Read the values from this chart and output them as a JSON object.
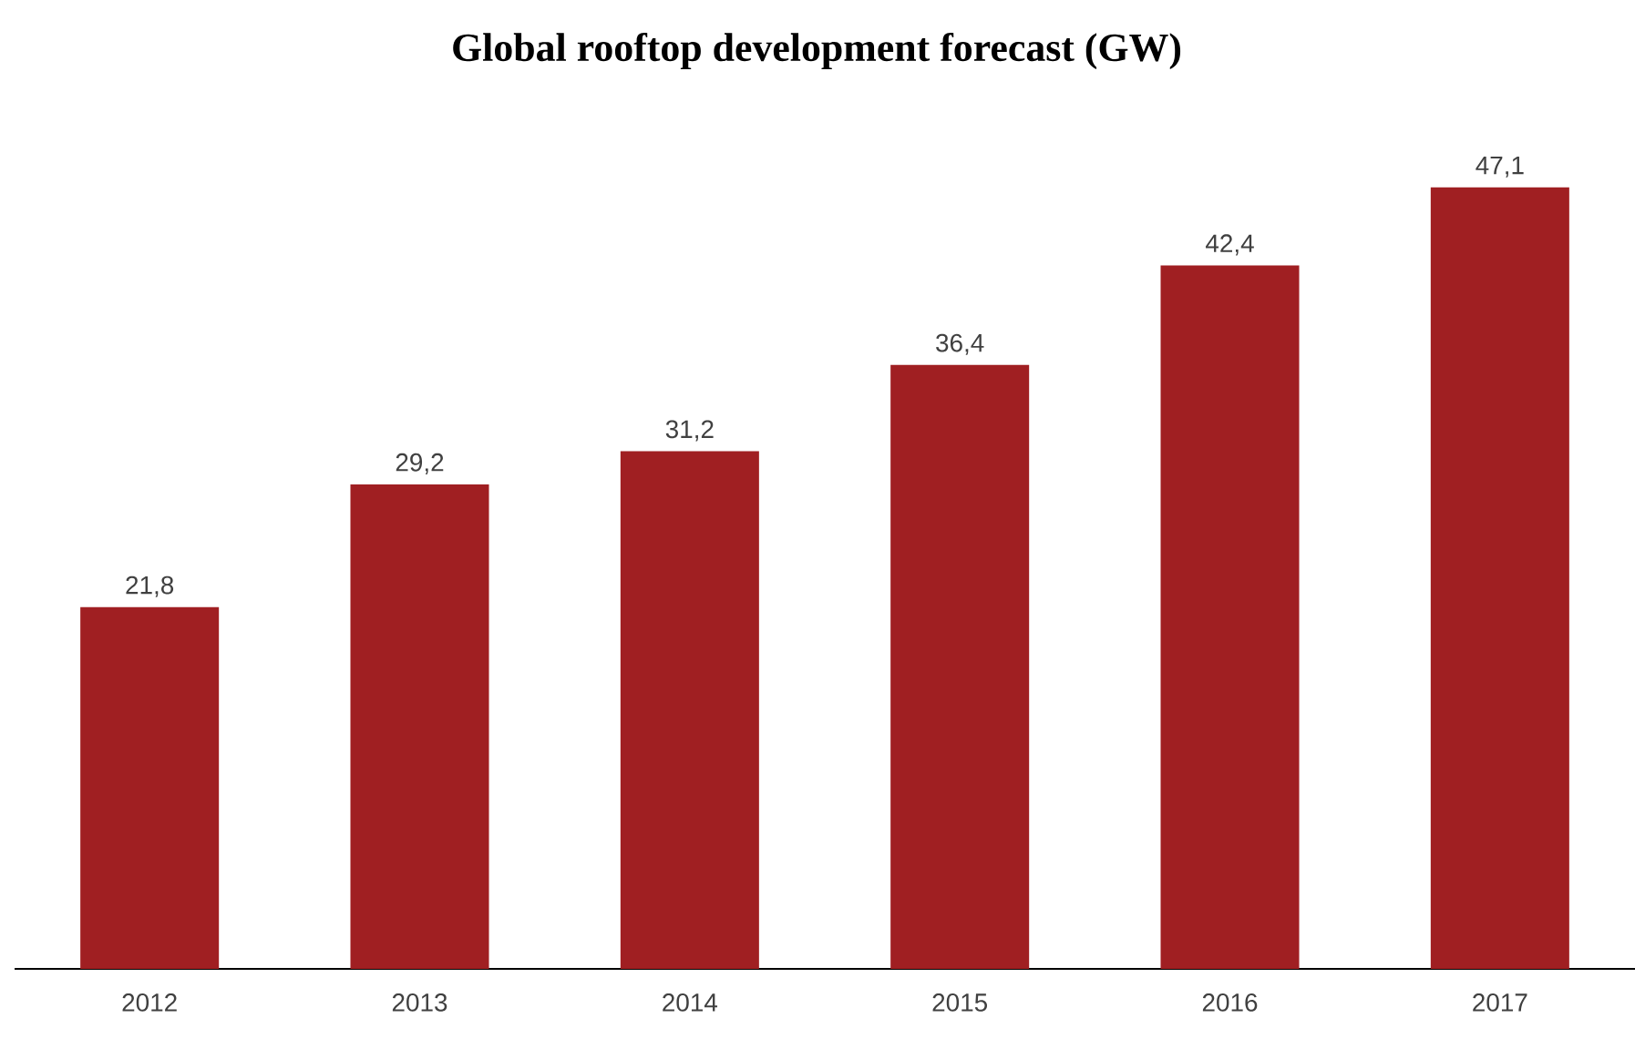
{
  "chart_data": {
    "type": "bar",
    "title": "Global rooftop development forecast (GW)",
    "categories": [
      "2012",
      "2013",
      "2014",
      "2015",
      "2016",
      "2017"
    ],
    "values": [
      21.8,
      29.2,
      31.2,
      36.4,
      42.4,
      47.1
    ],
    "value_labels": [
      "21,8",
      "29,2",
      "31,2",
      "36,4",
      "42,4",
      "47,1"
    ],
    "color": "#a01f22",
    "tick_labels": "x"
  }
}
